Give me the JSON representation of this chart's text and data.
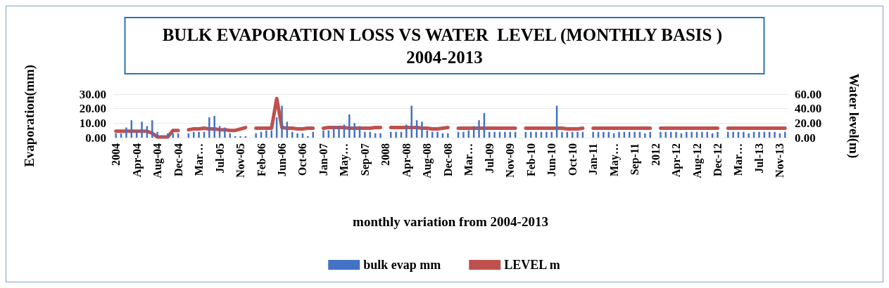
{
  "chart_data": {
    "type": "bar",
    "title": "BULK EVAPORATION LOSS VS WATER  LEVEL (MONTHLY BASIS ) 2004-2013",
    "xlabel": "monthly variation from 2004-2013",
    "ylabel": "Evaporation(mm)",
    "y2label": "Water level(m)",
    "categories": [
      "2004",
      null,
      null,
      null,
      "Apr-04",
      null,
      null,
      null,
      "Aug-04",
      null,
      null,
      null,
      "Dec-04",
      null,
      null,
      null,
      "Mar…",
      null,
      null,
      null,
      "Jul-05",
      null,
      null,
      null,
      "Nov-05",
      null,
      null,
      null,
      "Feb-06",
      null,
      null,
      null,
      "Jun-06",
      null,
      null,
      null,
      "Oct-06",
      null,
      null,
      null,
      "Jan-07",
      null,
      null,
      null,
      "May…",
      null,
      null,
      null,
      "Sep-07",
      null,
      null,
      null,
      "2008",
      null,
      null,
      null,
      "Apr-08",
      null,
      null,
      null,
      "Aug-08",
      null,
      null,
      null,
      "Dec-08",
      null,
      null,
      null,
      "Mar…",
      null,
      null,
      null,
      "Jul-09",
      null,
      null,
      null,
      "Nov-09",
      null,
      null,
      null,
      "Feb-10",
      null,
      null,
      null,
      "Jun-10",
      null,
      null,
      null,
      "Oct-10",
      null,
      null,
      null,
      "Jan-11",
      null,
      null,
      null,
      "May…",
      null,
      null,
      null,
      "Sep-11",
      null,
      null,
      null,
      "2012",
      null,
      null,
      null,
      "Apr-12",
      null,
      null,
      null,
      "Aug-12",
      null,
      null,
      null,
      "Dec-12",
      null,
      null,
      null,
      "Mar…",
      null,
      null,
      null,
      "Jul-13",
      null,
      null,
      null,
      "Nov-13",
      null
    ],
    "series": [
      {
        "name": "bulk evap mm",
        "color": "#4472c4",
        "values": [
          3,
          3,
          7,
          12,
          5,
          11,
          8,
          12,
          4,
          1,
          3,
          3,
          3,
          null,
          3,
          4,
          4,
          4,
          14,
          15,
          8,
          7,
          3,
          1,
          1,
          1,
          null,
          3,
          4,
          5,
          5,
          14,
          22,
          11,
          4,
          3,
          3,
          1,
          4,
          null,
          5,
          5,
          8,
          8,
          9,
          16,
          10,
          8,
          4,
          4,
          3,
          3,
          null,
          4,
          4,
          4,
          9,
          22,
          12,
          11,
          5,
          4,
          4,
          3,
          3,
          null,
          4,
          4,
          5,
          8,
          12,
          17,
          4,
          4,
          4,
          4,
          4,
          4,
          null,
          4,
          4,
          4,
          4,
          4,
          4,
          22,
          4,
          4,
          4,
          4,
          4,
          null,
          4,
          4,
          4,
          4,
          3,
          4,
          4,
          4,
          4,
          4,
          3,
          4,
          null,
          4,
          4,
          4,
          4,
          3,
          4,
          4,
          4,
          4,
          4,
          3,
          4,
          null,
          4,
          4,
          4,
          4,
          3,
          4,
          4,
          4,
          4,
          4,
          3,
          4
        ]
      },
      {
        "name": "LEVEL m",
        "type": "line",
        "axis": "y2",
        "color": "#c0504d",
        "values": [
          9,
          9,
          9,
          9,
          9,
          9,
          9,
          6,
          1,
          1,
          1,
          10,
          10,
          null,
          11,
          12,
          12,
          13,
          12,
          12,
          11,
          11,
          10,
          10,
          12,
          14,
          null,
          13,
          13,
          13,
          13,
          54,
          14,
          13,
          13,
          12,
          12,
          13,
          13,
          null,
          13,
          14,
          14,
          14,
          14,
          13,
          13,
          13,
          13,
          13,
          14,
          14,
          null,
          14,
          14,
          14,
          14,
          14,
          14,
          13,
          13,
          12,
          12,
          13,
          14,
          null,
          13,
          13,
          13,
          13,
          13,
          13,
          13,
          13,
          13,
          13,
          13,
          13,
          null,
          13,
          13,
          13,
          13,
          13,
          13,
          13,
          13,
          12,
          12,
          12,
          13,
          null,
          13,
          13,
          13,
          13,
          13,
          13,
          13,
          13,
          13,
          13,
          13,
          13,
          null,
          13,
          13,
          13,
          13,
          13,
          13,
          13,
          13,
          13,
          13,
          13,
          13,
          null,
          13,
          13,
          13,
          13,
          13,
          13,
          13,
          13,
          13,
          13,
          13,
          13
        ]
      }
    ],
    "ylim": [
      0,
      30
    ],
    "yticks": [
      {
        "value": 0,
        "label": "0.00"
      },
      {
        "value": 10,
        "label": "10.00"
      },
      {
        "value": 20,
        "label": "20.00"
      },
      {
        "value": 30,
        "label": "30.00"
      }
    ],
    "y2lim": [
      0,
      60
    ],
    "y2ticks": [
      {
        "value": 0,
        "label": "0.00"
      },
      {
        "value": 20,
        "label": "20.00"
      },
      {
        "value": 40,
        "label": "40.00"
      },
      {
        "value": 60,
        "label": "60.00"
      }
    ],
    "grid": "y",
    "legend": "bottom",
    "marker": "none",
    "line_style": "solid"
  }
}
